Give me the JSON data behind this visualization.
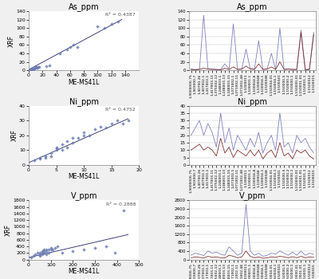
{
  "panels": [
    {
      "title": "As_ppm",
      "r2_label": "R² = 0.4387",
      "xlabel": "ME-MS41L",
      "ylabel": "XRF",
      "scatter_x": [
        2,
        3,
        4,
        5,
        5,
        6,
        7,
        8,
        8,
        9,
        10,
        10,
        11,
        12,
        13,
        14,
        15,
        25,
        30,
        45,
        55,
        60,
        65,
        70,
        100,
        110,
        120,
        130
      ],
      "scatter_y": [
        2,
        1,
        3,
        2,
        4,
        5,
        3,
        5,
        4,
        6,
        7,
        8,
        6,
        8,
        6,
        7,
        8,
        10,
        12,
        40,
        50,
        55,
        60,
        55,
        105,
        100,
        110,
        115
      ],
      "line_x_start": 0,
      "line_x_end": 135,
      "line_slope": 0.88,
      "line_intercept": 1.5,
      "xlim": [
        0,
        160
      ],
      "ylim": [
        0,
        140
      ],
      "xticks": [
        0,
        20,
        40,
        60,
        80,
        100,
        120,
        140
      ],
      "yticks": [
        0,
        20,
        40,
        60,
        80,
        100,
        120,
        140
      ],
      "ts_ylim": [
        0,
        140
      ],
      "ts_yticks": [
        0,
        20,
        40,
        60,
        80,
        100,
        120,
        140
      ],
      "ts_memsall": [
        3,
        2,
        3,
        130,
        4,
        3,
        2,
        2,
        15,
        3,
        110,
        2,
        3,
        50,
        4,
        3,
        70,
        2,
        3,
        40,
        2,
        100,
        2,
        3,
        2,
        2,
        95,
        2,
        3,
        90
      ],
      "ts_xrf": [
        2,
        1,
        2,
        5,
        3,
        2,
        2,
        1,
        5,
        2,
        8,
        2,
        3,
        10,
        3,
        2,
        15,
        2,
        3,
        8,
        2,
        20,
        2,
        3,
        2,
        2,
        90,
        1,
        2,
        85
      ]
    },
    {
      "title": "Ni_ppm",
      "r2_label": "R² = 0.4752",
      "xlabel": "ME-MS41L",
      "ylabel": "XRF",
      "scatter_x": [
        1,
        2,
        2,
        3,
        3,
        4,
        4,
        5,
        5,
        5,
        6,
        6,
        7,
        7,
        8,
        8,
        9,
        10,
        10,
        11,
        12,
        13,
        14,
        15,
        16,
        17,
        18
      ],
      "scatter_y": [
        3,
        4,
        5,
        6,
        5,
        6,
        8,
        10,
        12,
        11,
        10,
        14,
        12,
        16,
        15,
        18,
        18,
        20,
        22,
        20,
        24,
        26,
        25,
        28,
        30,
        28,
        30
      ],
      "line_x_start": 0,
      "line_x_end": 18,
      "line_slope": 1.65,
      "line_intercept": 1.5,
      "xlim": [
        0,
        20
      ],
      "ylim": [
        0,
        40
      ],
      "xticks": [
        0,
        5,
        10,
        15,
        20
      ],
      "yticks": [
        0,
        10,
        20,
        30,
        40
      ],
      "ts_ylim": [
        0,
        40
      ],
      "ts_yticks": [
        0,
        5,
        10,
        15,
        20,
        25,
        30,
        35,
        40
      ],
      "ts_memsall": [
        20,
        25,
        30,
        20,
        28,
        22,
        12,
        35,
        15,
        25,
        10,
        20,
        15,
        10,
        18,
        12,
        22,
        8,
        15,
        20,
        10,
        35,
        12,
        15,
        8,
        20,
        15,
        18,
        12,
        8
      ],
      "ts_xrf": [
        10,
        12,
        14,
        10,
        12,
        10,
        6,
        18,
        8,
        12,
        5,
        10,
        8,
        6,
        10,
        6,
        10,
        4,
        8,
        10,
        5,
        15,
        6,
        8,
        4,
        10,
        8,
        10,
        6,
        4
      ]
    },
    {
      "title": "V_ppm",
      "r2_label": "R² = 0.2888",
      "xlabel": "ME-MS41L",
      "ylabel": "XRF",
      "scatter_x": [
        10,
        20,
        30,
        40,
        50,
        60,
        70,
        80,
        90,
        100,
        110,
        120,
        130,
        50,
        60,
        70,
        80,
        90,
        100,
        150,
        200,
        250,
        300,
        350,
        390,
        430,
        50,
        60,
        70,
        80
      ],
      "scatter_y": [
        50,
        100,
        150,
        200,
        200,
        250,
        300,
        250,
        300,
        350,
        300,
        350,
        400,
        100,
        150,
        200,
        150,
        200,
        300,
        200,
        250,
        300,
        350,
        400,
        200,
        1500,
        150,
        200,
        250,
        300
      ],
      "line_x_start": 0,
      "line_x_end": 450,
      "line_slope": 1.55,
      "line_intercept": 60,
      "xlim": [
        0,
        500
      ],
      "ylim": [
        0,
        1800
      ],
      "xticks": [
        0,
        100,
        200,
        300,
        400,
        500
      ],
      "yticks": [
        0,
        200,
        400,
        600,
        800,
        1000,
        1200,
        1400,
        1600,
        1800
      ],
      "ts_ylim": [
        0,
        2800
      ],
      "ts_yticks": [
        0,
        400,
        800,
        1200,
        1600,
        2000,
        2400,
        2800
      ],
      "ts_memsall": [
        200,
        300,
        250,
        180,
        400,
        300,
        350,
        250,
        200,
        600,
        400,
        200,
        300,
        2600,
        400,
        200,
        300,
        150,
        200,
        300,
        250,
        400,
        300,
        200,
        350,
        200,
        400,
        200,
        300,
        250
      ],
      "ts_xrf": [
        80,
        120,
        100,
        70,
        150,
        100,
        120,
        80,
        70,
        200,
        150,
        80,
        120,
        400,
        150,
        80,
        120,
        60,
        80,
        120,
        100,
        150,
        120,
        80,
        130,
        80,
        150,
        80,
        120,
        100
      ]
    }
  ],
  "scatter_color": "#6B7DB3",
  "scatter_edge": "none",
  "line_color": "#404080",
  "ts_color_memsall": "#8080C0",
  "ts_color_xrf": "#803030",
  "bg_color": "#F0F0F0",
  "plot_bg": "#FFFFFF",
  "font_size": 5.5,
  "title_font_size": 7,
  "legend_memsall": "ME-MS41L",
  "legend_xrf": "XRF"
}
